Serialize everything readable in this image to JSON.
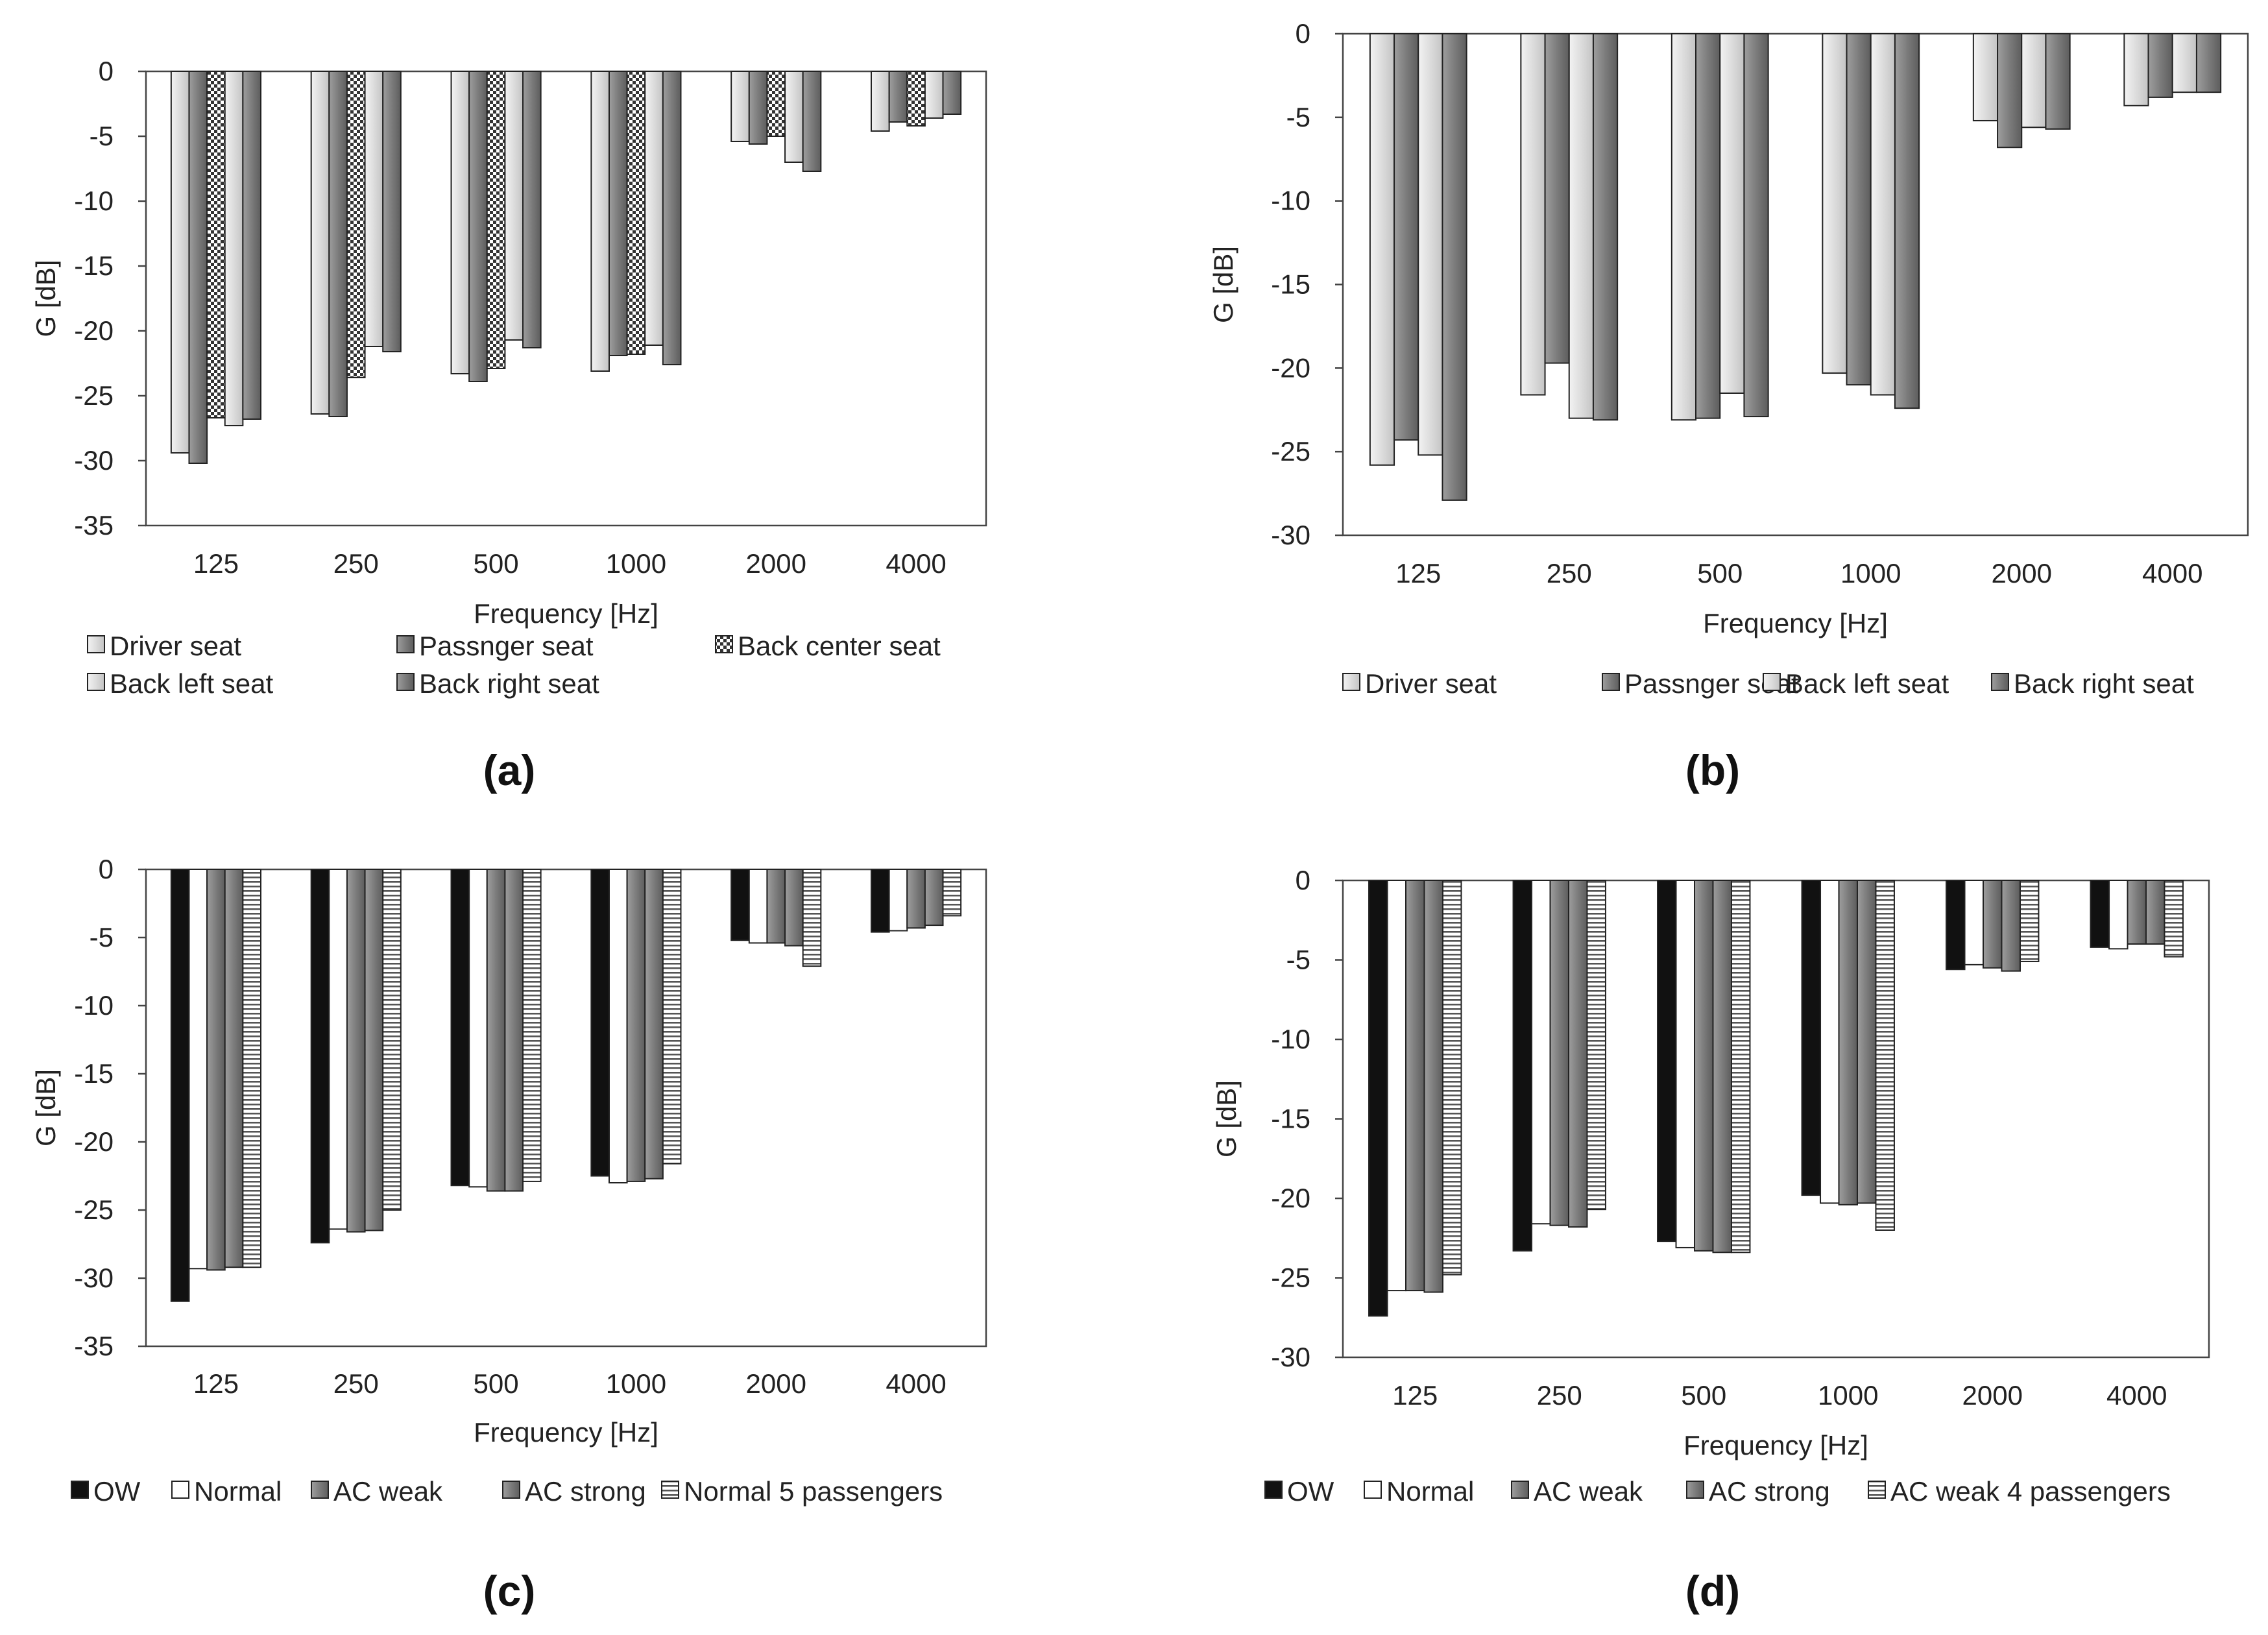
{
  "chart_data": [
    {
      "id": "a",
      "panel_label": "(a)",
      "type": "bar",
      "ylabel": "G [dB]",
      "xlabel": "Frequency [Hz]",
      "ylim": [
        -35,
        0
      ],
      "yticks": [
        0,
        -5,
        -10,
        -15,
        -20,
        -25,
        -30,
        -35
      ],
      "categories": [
        "125",
        "250",
        "500",
        "1000",
        "2000",
        "4000"
      ],
      "series": [
        {
          "name": "Driver seat",
          "fill": "light",
          "values": [
            -29.4,
            -26.4,
            -23.3,
            -23.1,
            -5.4,
            -4.6
          ]
        },
        {
          "name": "Passnger seat",
          "fill": "dark",
          "values": [
            -30.2,
            -26.6,
            -23.9,
            -21.9,
            -5.6,
            -3.9
          ]
        },
        {
          "name": "Back center seat",
          "fill": "checker",
          "values": [
            -26.7,
            -23.6,
            -22.9,
            -21.8,
            -5.0,
            -4.2
          ]
        },
        {
          "name": "Back left seat",
          "fill": "light",
          "values": [
            -27.3,
            -21.2,
            -20.7,
            -21.1,
            -7.0,
            -3.6
          ]
        },
        {
          "name": "Back right seat",
          "fill": "dark",
          "values": [
            -26.8,
            -21.6,
            -21.3,
            -22.6,
            -7.7,
            -3.3
          ]
        }
      ],
      "legend": {
        "position": "bottom",
        "columns": 3
      }
    },
    {
      "id": "b",
      "panel_label": "(b)",
      "type": "bar",
      "ylabel": "G [dB]",
      "xlabel": "Frequency [Hz]",
      "ylim": [
        -30,
        0
      ],
      "yticks": [
        0,
        -5,
        -10,
        -15,
        -20,
        -25,
        -30
      ],
      "categories": [
        "125",
        "250",
        "500",
        "1000",
        "2000",
        "4000"
      ],
      "series": [
        {
          "name": "Driver seat",
          "fill": "light",
          "values": [
            -25.8,
            -21.6,
            -23.1,
            -20.3,
            -5.2,
            -4.3
          ]
        },
        {
          "name": "Passnger seat",
          "fill": "dark",
          "values": [
            -24.3,
            -19.7,
            -23.0,
            -21.0,
            -6.8,
            -3.8
          ]
        },
        {
          "name": "Back left seat",
          "fill": "light",
          "values": [
            -25.2,
            -23.0,
            -21.5,
            -21.6,
            -5.6,
            -3.5
          ]
        },
        {
          "name": "Back right seat",
          "fill": "dark",
          "values": [
            -27.9,
            -23.1,
            -22.9,
            -22.4,
            -5.7,
            -3.5
          ]
        }
      ],
      "legend": {
        "position": "bottom",
        "columns": 4
      }
    },
    {
      "id": "c",
      "panel_label": "(c)",
      "type": "bar",
      "ylabel": "G [dB]",
      "xlabel": "Frequency [Hz]",
      "ylim": [
        -35,
        0
      ],
      "yticks": [
        0,
        -5,
        -10,
        -15,
        -20,
        -25,
        -30,
        -35
      ],
      "categories": [
        "125",
        "250",
        "500",
        "1000",
        "2000",
        "4000"
      ],
      "series": [
        {
          "name": "OW",
          "fill": "black",
          "values": [
            -31.7,
            -27.4,
            -23.2,
            -22.5,
            -5.2,
            -4.6
          ]
        },
        {
          "name": "Normal",
          "fill": "white",
          "values": [
            -29.3,
            -26.4,
            -23.3,
            -23.0,
            -5.4,
            -4.5
          ]
        },
        {
          "name": "AC weak",
          "fill": "dark",
          "values": [
            -29.4,
            -26.6,
            -23.6,
            -22.9,
            -5.4,
            -4.3
          ]
        },
        {
          "name": "AC strong",
          "fill": "dark",
          "values": [
            -29.2,
            -26.5,
            -23.6,
            -22.7,
            -5.6,
            -4.1
          ]
        },
        {
          "name": "Normal 5 passengers",
          "fill": "hstripe",
          "values": [
            -29.2,
            -25.0,
            -22.9,
            -21.6,
            -7.1,
            -3.4
          ]
        }
      ],
      "legend": {
        "position": "bottom",
        "columns": 5
      }
    },
    {
      "id": "d",
      "panel_label": "(d)",
      "type": "bar",
      "ylabel": "G [dB]",
      "xlabel": "Frequency [Hz]",
      "ylim": [
        -30,
        0
      ],
      "yticks": [
        0,
        -5,
        -10,
        -15,
        -20,
        -25,
        -30
      ],
      "categories": [
        "125",
        "250",
        "500",
        "1000",
        "2000",
        "4000"
      ],
      "series": [
        {
          "name": "OW",
          "fill": "black",
          "values": [
            -27.4,
            -23.3,
            -22.7,
            -19.8,
            -5.6,
            -4.2
          ]
        },
        {
          "name": "Normal",
          "fill": "white",
          "values": [
            -25.8,
            -21.6,
            -23.1,
            -20.3,
            -5.3,
            -4.3
          ]
        },
        {
          "name": "AC weak",
          "fill": "dark",
          "values": [
            -25.8,
            -21.7,
            -23.3,
            -20.4,
            -5.5,
            -4.0
          ]
        },
        {
          "name": "AC strong",
          "fill": "dark",
          "values": [
            -25.9,
            -21.8,
            -23.4,
            -20.3,
            -5.7,
            -4.0
          ]
        },
        {
          "name": "AC weak 4 passengers",
          "fill": "hstripe",
          "values": [
            -24.8,
            -20.7,
            -23.4,
            -22.0,
            -5.1,
            -4.8
          ]
        }
      ],
      "legend": {
        "position": "bottom",
        "columns": 5
      }
    }
  ]
}
